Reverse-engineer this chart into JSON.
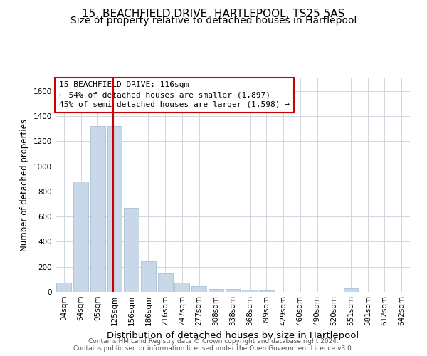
{
  "title": "15, BEACHFIELD DRIVE, HARTLEPOOL, TS25 5AS",
  "subtitle": "Size of property relative to detached houses in Hartlepool",
  "xlabel": "Distribution of detached houses by size in Hartlepool",
  "ylabel": "Number of detached properties",
  "categories": [
    "34sqm",
    "64sqm",
    "95sqm",
    "125sqm",
    "156sqm",
    "186sqm",
    "216sqm",
    "247sqm",
    "277sqm",
    "308sqm",
    "338sqm",
    "368sqm",
    "399sqm",
    "429sqm",
    "460sqm",
    "490sqm",
    "520sqm",
    "551sqm",
    "581sqm",
    "612sqm",
    "642sqm"
  ],
  "values": [
    75,
    880,
    1320,
    1320,
    670,
    245,
    145,
    75,
    45,
    25,
    25,
    15,
    10,
    0,
    0,
    0,
    0,
    30,
    0,
    0,
    0
  ],
  "bar_color": "#c8d8e8",
  "bar_edgecolor": "#a0b8d0",
  "vline_color": "#cc0000",
  "annotation_text": "15 BEACHFIELD DRIVE: 116sqm\n← 54% of detached houses are smaller (1,897)\n45% of semi-detached houses are larger (1,598) →",
  "annotation_box_color": "#ffffff",
  "annotation_box_edgecolor": "#cc0000",
  "ylim": [
    0,
    1700
  ],
  "yticks": [
    0,
    200,
    400,
    600,
    800,
    1000,
    1200,
    1400,
    1600
  ],
  "grid_color": "#c8d0dc",
  "background_color": "#ffffff",
  "footer1": "Contains HM Land Registry data © Crown copyright and database right 2024.",
  "footer2": "Contains public sector information licensed under the Open Government Licence v3.0.",
  "title_fontsize": 11,
  "subtitle_fontsize": 10,
  "xlabel_fontsize": 9.5,
  "ylabel_fontsize": 8.5,
  "tick_fontsize": 7.5,
  "footer_fontsize": 6.5,
  "annotation_fontsize": 8
}
